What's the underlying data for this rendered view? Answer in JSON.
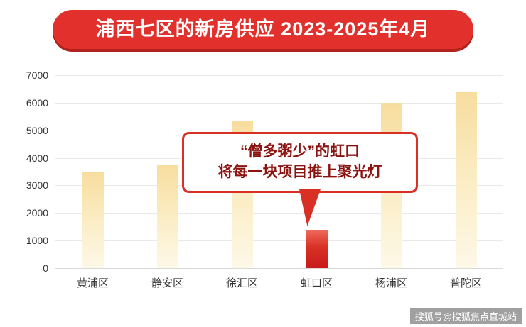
{
  "banner": {
    "title": "浦西七区的新房供应 2023-2025年4月"
  },
  "chart_data": {
    "type": "bar",
    "title": "浦西七区的新房供应 2023-2025年4月",
    "categories": [
      "黄浦区",
      "静安区",
      "徐汇区",
      "虹口区",
      "杨浦区",
      "普陀区"
    ],
    "values": [
      3500,
      3750,
      5350,
      1400,
      6000,
      6400
    ],
    "highlight": {
      "index": 3,
      "category": "虹口区"
    },
    "ylim": [
      0,
      7000
    ],
    "ytick_step": 1000,
    "yticks": [
      0,
      1000,
      2000,
      3000,
      4000,
      5000,
      6000,
      7000
    ],
    "grid": true,
    "legend_position": "none",
    "bar_colors": {
      "normal_top": "#f7dd9e",
      "normal_bottom": "#fdf8e8",
      "highlight_top": "#ef6a5b",
      "highlight_bottom": "#c81a1a"
    }
  },
  "callout": {
    "line1": "“僧多粥少”的虹口",
    "line2": "将每一块项目推上聚光灯"
  },
  "watermark": {
    "text": "搜狐号@搜狐焦点直城站"
  },
  "colors": {
    "banner_bg": "#e2312c",
    "banner_shadow": "#b2221c",
    "banner_text": "#ffffff",
    "callout_border": "#d93025",
    "callout_text": "#8c1410",
    "grid_line": "#e9e9e9",
    "axis_text": "#333333",
    "watermark_text": "#ffffff"
  }
}
